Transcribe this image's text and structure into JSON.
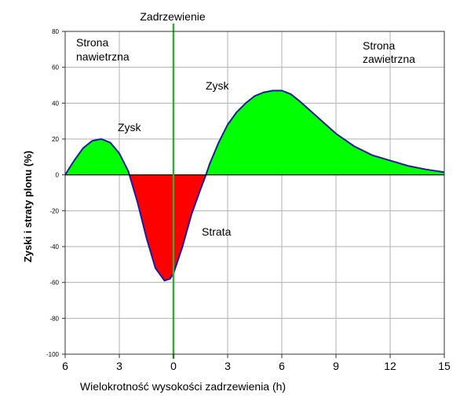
{
  "chart_data": {
    "type": "area",
    "title": "Zadrzewienie",
    "xlabel": "Wielokrotność wysokości zadrzewienia (h)",
    "ylabel": "Zyski i straty plonu (%)",
    "xlim": [
      -6,
      15
    ],
    "ylim": [
      -100,
      80
    ],
    "x_ticks": [
      -6,
      -3,
      0,
      3,
      6,
      9,
      12,
      15
    ],
    "x_tick_labels": [
      "6",
      "3",
      "0",
      "3",
      "6",
      "9",
      "12",
      "15"
    ],
    "y_ticks": [
      80,
      60,
      40,
      20,
      0,
      -20,
      -40,
      -60,
      -80,
      -100
    ],
    "y_tick_labels": [
      "80",
      "60",
      "40",
      "20",
      "0",
      "-20",
      "-40",
      "-60",
      "-80",
      "-100"
    ],
    "grid": true,
    "tree_line_x": 0,
    "series": [
      {
        "x": [
          -6,
          -5.5,
          -5,
          -4.5,
          -4,
          -3.5,
          -3,
          -2.5,
          -2,
          -1.5,
          -1,
          -0.5,
          -0.2,
          0,
          0.5,
          1,
          1.5,
          1.8,
          2,
          2.5,
          3,
          3.5,
          4,
          4.5,
          5,
          5.5,
          6,
          6.5,
          7,
          8,
          9,
          10,
          11,
          12,
          13,
          14,
          15
        ],
        "y": [
          0,
          8,
          15,
          19,
          20,
          18,
          12,
          2,
          -15,
          -35,
          -52,
          -59,
          -58,
          -55,
          -40,
          -22,
          -8,
          0,
          6,
          18,
          28,
          35,
          40,
          44,
          46,
          47,
          47,
          45,
          41,
          32,
          23,
          16,
          11,
          8,
          5,
          3,
          1.5
        ]
      }
    ],
    "gain_color": "#00ff00",
    "loss_color": "#ff0000",
    "line_color": "#1a1aa0",
    "tree_line_color": "#3aa83a",
    "annotations": [
      {
        "text": "Zysk",
        "x": -3,
        "y": 26
      },
      {
        "text": "Zysk",
        "x": 2.5,
        "y": 49
      },
      {
        "text": "Strata",
        "x": 2.5,
        "y": -33
      }
    ],
    "region_labels": {
      "windward": [
        "Strona",
        "nawietrzna"
      ],
      "leeward": [
        "Strona",
        "zawietrzna"
      ]
    }
  }
}
